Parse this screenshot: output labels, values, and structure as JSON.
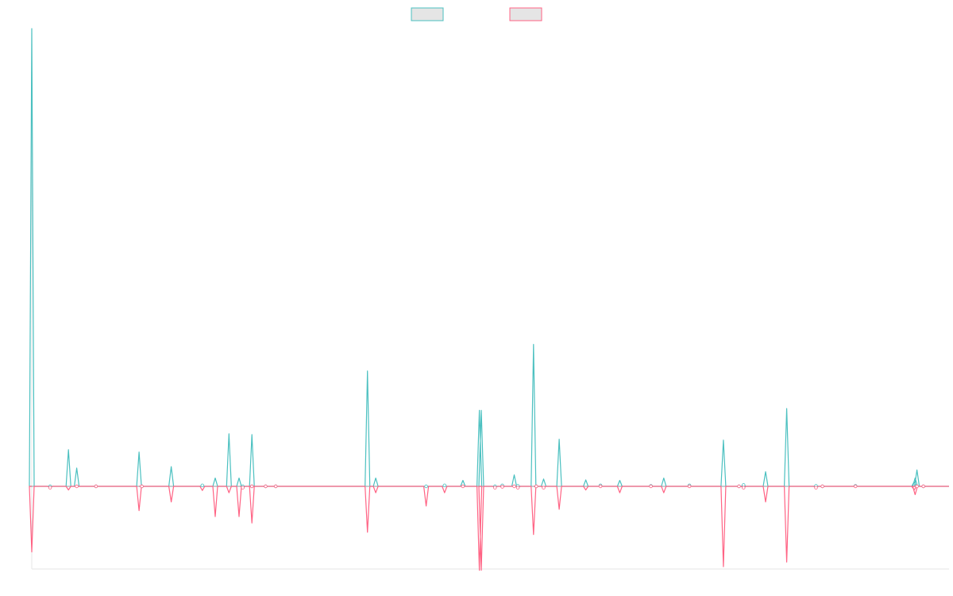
{
  "chart_data": {
    "type": "line",
    "legend": {
      "placement": "top-center",
      "entries": [
        {
          "label": "",
          "color": "#4BC0C0"
        },
        {
          "label": "",
          "color": "#FF6384"
        }
      ]
    },
    "x": [
      0.0,
      0.02,
      0.04,
      0.049,
      0.07,
      0.117,
      0.12,
      0.152,
      0.186,
      0.2,
      0.215,
      0.226,
      0.23,
      0.24,
      0.24,
      0.255,
      0.266,
      0.366,
      0.375,
      0.43,
      0.45,
      0.47,
      0.488,
      0.49,
      0.505,
      0.513,
      0.526,
      0.53,
      0.547,
      0.55,
      0.558,
      0.575,
      0.604,
      0.62,
      0.641,
      0.675,
      0.689,
      0.717,
      0.754,
      0.776,
      0.771,
      0.8,
      0.823,
      0.855,
      0.862,
      0.898,
      0.962,
      0.963,
      0.965,
      0.972
    ],
    "series": [
      {
        "name": "",
        "color": "#4BC0C0",
        "values": [
          100,
          0,
          8,
          4,
          0,
          7.5,
          0,
          4.3,
          0.2,
          1.8,
          11.5,
          1.8,
          0,
          0,
          11.3,
          0,
          0,
          25.2,
          1.8,
          0,
          0.2,
          1.3,
          16.6,
          16.6,
          0,
          0.2,
          2.5,
          0.1,
          31,
          0,
          1.6,
          10.3,
          1.4,
          0.2,
          1.3,
          0.1,
          1.8,
          0.2,
          10.1,
          0.3,
          0,
          3.2,
          17,
          0.1,
          0,
          0.1,
          1,
          1.8,
          3.6,
          0
        ],
        "ylim_note": "positive half"
      },
      {
        "name": "",
        "color": "#FF6384",
        "values": [
          -14.3,
          -0.3,
          -0.8,
          0,
          0,
          -5.3,
          0,
          -3.4,
          -0.9,
          -6.6,
          -1.4,
          -6.6,
          -0.3,
          0,
          -8,
          0,
          0,
          -10,
          -1.4,
          -4.3,
          -1.4,
          0,
          -18.3,
          -18.3,
          -0.3,
          -0.1,
          0,
          -0.3,
          -10.5,
          0,
          -0.3,
          -5,
          -0.8,
          0,
          -1.4,
          0,
          -1.4,
          0,
          -17.5,
          -0.3,
          0,
          -3.4,
          -16.5,
          -0.3,
          0,
          0,
          -0.8,
          -1.8,
          0,
          0
        ]
      }
    ],
    "ylim": [
      -18,
      100
    ],
    "xlim": [
      0,
      1
    ],
    "grid": false,
    "title": "",
    "xlabel": "",
    "ylabel": ""
  }
}
